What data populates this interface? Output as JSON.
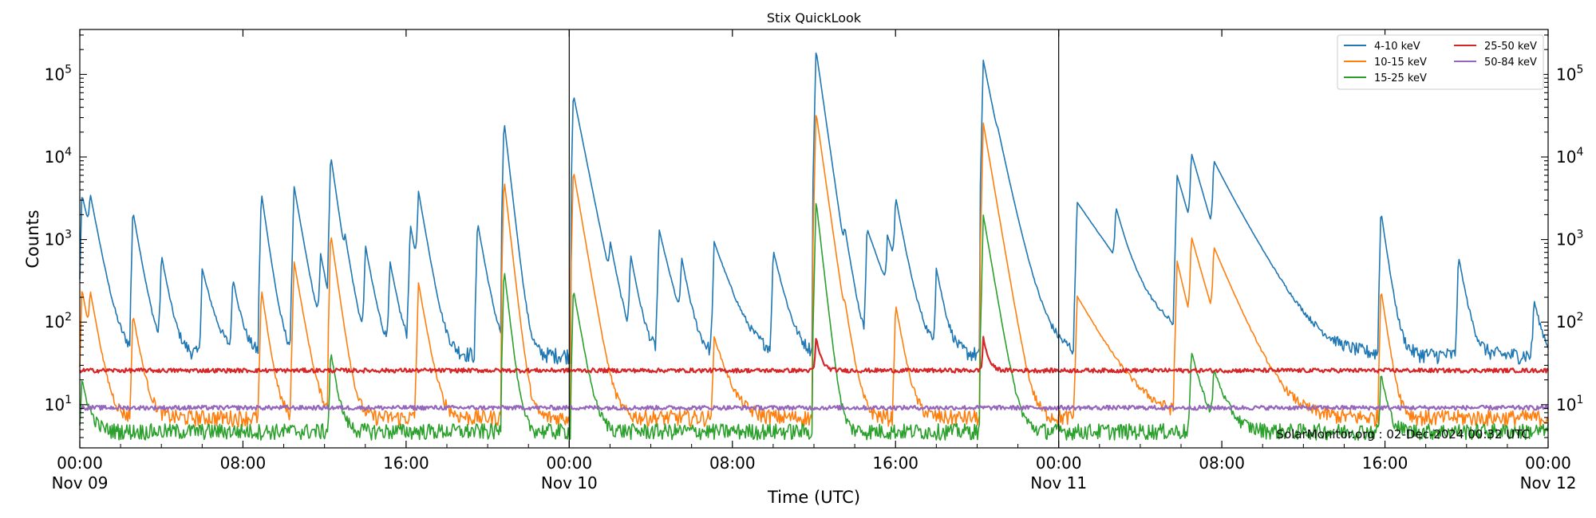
{
  "chart_data": {
    "type": "line",
    "title": "Stix QuickLook",
    "xlabel": "Time (UTC)",
    "ylabel": "Counts",
    "yscale": "log",
    "ylim": [
      3,
      350000
    ],
    "xlim_hours": [
      0,
      72
    ],
    "x_ticks": [
      {
        "h": 0,
        "line1": "00:00",
        "line2": "Nov 09"
      },
      {
        "h": 8,
        "line1": "08:00",
        "line2": ""
      },
      {
        "h": 16,
        "line1": "16:00",
        "line2": ""
      },
      {
        "h": 24,
        "line1": "00:00",
        "line2": "Nov 10"
      },
      {
        "h": 32,
        "line1": "08:00",
        "line2": ""
      },
      {
        "h": 40,
        "line1": "16:00",
        "line2": ""
      },
      {
        "h": 48,
        "line1": "00:00",
        "line2": "Nov 11"
      },
      {
        "h": 56,
        "line1": "08:00",
        "line2": ""
      },
      {
        "h": 64,
        "line1": "16:00",
        "line2": ""
      },
      {
        "h": 72,
        "line1": "00:00",
        "line2": "Nov 12"
      }
    ],
    "y_ticks": [
      {
        "value": 10,
        "base": "10",
        "exp": "1"
      },
      {
        "value": 100,
        "base": "10",
        "exp": "2"
      },
      {
        "value": 1000,
        "base": "10",
        "exp": "3"
      },
      {
        "value": 10000,
        "base": "10",
        "exp": "4"
      },
      {
        "value": 100000,
        "base": "10",
        "exp": "5"
      }
    ],
    "day_boundaries_hours": [
      24,
      48
    ],
    "annotation": "SolarMonitor.org : 02-Dec-2024 00:32 UTC",
    "series": [
      {
        "name": "4-10 keV",
        "color": "#1f77b4",
        "baseline": 40,
        "peaks": [
          [
            0.1,
            3500,
            0.4
          ],
          [
            0.5,
            2400,
            0.3
          ],
          [
            2.6,
            2200,
            0.3
          ],
          [
            4.0,
            600,
            0.3
          ],
          [
            6.0,
            400,
            0.4
          ],
          [
            7.5,
            300,
            0.3
          ],
          [
            8.9,
            3700,
            0.25
          ],
          [
            10.5,
            4500,
            0.3
          ],
          [
            11.8,
            600,
            0.3
          ],
          [
            12.3,
            10500,
            0.25
          ],
          [
            13.0,
            500,
            0.3
          ],
          [
            14.0,
            800,
            0.3
          ],
          [
            15.2,
            500,
            0.3
          ],
          [
            16.2,
            1500,
            0.3
          ],
          [
            16.6,
            3500,
            0.3
          ],
          [
            19.5,
            1600,
            0.3
          ],
          [
            20.8,
            28000,
            0.2
          ],
          [
            24.2,
            58000,
            0.35
          ],
          [
            26.0,
            600,
            0.3
          ],
          [
            27.0,
            600,
            0.3
          ],
          [
            28.4,
            1300,
            0.4
          ],
          [
            29.5,
            500,
            0.3
          ],
          [
            31.1,
            900,
            0.6
          ],
          [
            34.0,
            700,
            0.4
          ],
          [
            36.1,
            200000,
            0.25
          ],
          [
            37.5,
            700,
            0.3
          ],
          [
            38.6,
            1300,
            0.6
          ],
          [
            39.6,
            850,
            0.5
          ],
          [
            40.0,
            2800,
            0.3
          ],
          [
            42.0,
            400,
            0.3
          ],
          [
            44.3,
            150000,
            0.35
          ],
          [
            45.0,
            3500,
            0.6
          ],
          [
            48.9,
            2800,
            1.2
          ],
          [
            50.8,
            1900,
            0.4
          ],
          [
            53.8,
            6000,
            0.5
          ],
          [
            54.5,
            9800,
            0.5
          ],
          [
            55.6,
            7800,
            1.0
          ],
          [
            63.8,
            2200,
            0.25
          ],
          [
            67.6,
            600,
            0.3
          ],
          [
            71.3,
            150,
            0.3
          ]
        ]
      },
      {
        "name": "10-15 keV",
        "color": "#ff7f0e",
        "baseline": 7,
        "peaks": [
          [
            0.1,
            250,
            0.3
          ],
          [
            0.5,
            180,
            0.3
          ],
          [
            2.6,
            120,
            0.3
          ],
          [
            8.9,
            250,
            0.25
          ],
          [
            10.5,
            550,
            0.3
          ],
          [
            12.3,
            1200,
            0.25
          ],
          [
            16.6,
            300,
            0.3
          ],
          [
            20.8,
            5500,
            0.2
          ],
          [
            24.2,
            7000,
            0.3
          ],
          [
            31.1,
            60,
            0.5
          ],
          [
            36.1,
            35000,
            0.25
          ],
          [
            37.5,
            60,
            0.3
          ],
          [
            40.0,
            160,
            0.3
          ],
          [
            44.3,
            26000,
            0.3
          ],
          [
            48.9,
            200,
            1.0
          ],
          [
            53.8,
            550,
            0.4
          ],
          [
            54.5,
            1000,
            0.5
          ],
          [
            55.6,
            700,
            0.8
          ],
          [
            63.8,
            250,
            0.25
          ]
        ]
      },
      {
        "name": "15-25 keV",
        "color": "#2ca02c",
        "baseline": 4.8,
        "peaks": [
          [
            0.1,
            15,
            0.3
          ],
          [
            12.3,
            40,
            0.25
          ],
          [
            20.8,
            450,
            0.2
          ],
          [
            24.2,
            250,
            0.3
          ],
          [
            36.1,
            3000,
            0.2
          ],
          [
            44.3,
            2000,
            0.3
          ],
          [
            54.5,
            40,
            0.4
          ],
          [
            55.6,
            20,
            0.5
          ],
          [
            63.8,
            20,
            0.25
          ]
        ]
      },
      {
        "name": "25-50 keV",
        "color": "#d62728",
        "baseline": 26,
        "peaks": [
          [
            36.1,
            40,
            0.2
          ],
          [
            44.3,
            40,
            0.2
          ]
        ]
      },
      {
        "name": "50-84 keV",
        "color": "#9467bd",
        "baseline": 9.2,
        "peaks": []
      }
    ],
    "legend_position": "top-right"
  }
}
